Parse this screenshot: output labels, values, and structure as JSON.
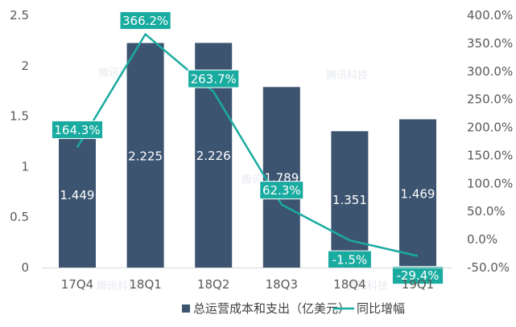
{
  "chart_data": {
    "type": "bar",
    "categories": [
      "17Q4",
      "18Q1",
      "18Q2",
      "18Q3",
      "18Q4",
      "19Q1"
    ],
    "series": [
      {
        "name": "总运营成本和支出（亿美元）",
        "type": "bar",
        "axis": "left",
        "values": [
          1.449,
          2.225,
          2.226,
          1.789,
          1.351,
          1.469
        ],
        "labels": [
          "1.449",
          "2.225",
          "2.226",
          "1.789",
          "1.351",
          "1.469"
        ],
        "color": "#3d5470"
      },
      {
        "name": "同比增幅",
        "type": "line",
        "axis": "right",
        "values": [
          164.3,
          366.2,
          263.7,
          62.3,
          -1.5,
          -29.4
        ],
        "labels": [
          "164.3%",
          "366.2%",
          "263.7%",
          "62.3%",
          "-1.5%",
          "-29.4%"
        ],
        "color": "#1aaba0"
      }
    ],
    "ylim_left": [
      0,
      2.5
    ],
    "left_ticks": [
      "0",
      "0.5",
      "1",
      "1.5",
      "2",
      "2.5"
    ],
    "ylim_right": [
      -50,
      400
    ],
    "right_ticks": [
      "-50.0%",
      "0.0%",
      "50.0%",
      "100.0%",
      "150.0%",
      "200.0%",
      "250.0%",
      "300.0%",
      "350.0%",
      "400.0%"
    ],
    "grid": false,
    "legend_position": "bottom",
    "watermark": "腾讯科技"
  }
}
